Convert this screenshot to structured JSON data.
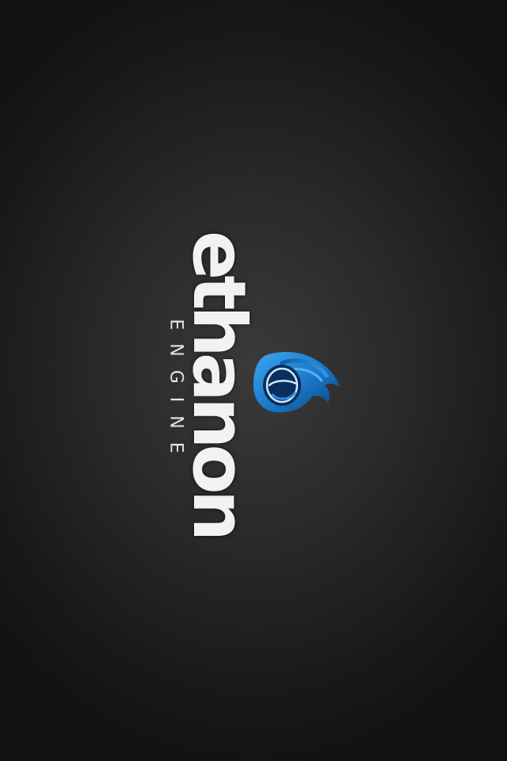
{
  "splash": {
    "brand_name": "ethanon",
    "brand_subtitle": "ENGINE",
    "logo_icon": "blue-flame-e-icon",
    "colors": {
      "background": "#1c1c1c",
      "wordmark": "#f2f2f2",
      "flame_primary": "#1f86d6",
      "flame_dark": "#0b3f7a"
    }
  }
}
